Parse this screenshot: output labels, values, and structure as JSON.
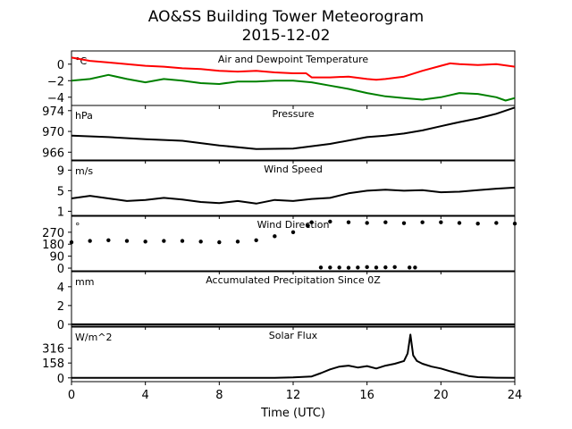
{
  "figure": {
    "title_line1": "AO&SS Building Tower Meteorogram",
    "title_line2": "2015-12-02",
    "xlabel": "Time (UTC)"
  },
  "chart_data": [
    {
      "type": "line",
      "title": "Air and Dewpoint Temperature",
      "unit_label": "°C",
      "yticks": [
        0,
        -2,
        -4
      ],
      "ylim": [
        -5.0,
        1.6
      ],
      "series": [
        {
          "color": "#ff0000",
          "x": [
            0,
            1,
            2,
            3,
            4,
            5,
            6,
            7,
            8,
            9,
            10,
            11,
            12,
            12.7,
            13,
            14,
            15,
            16,
            16.5,
            17,
            18,
            19,
            20,
            20.5,
            21,
            22,
            23,
            24
          ],
          "y": [
            0.8,
            0.4,
            0.2,
            0.0,
            -0.2,
            -0.3,
            -0.5,
            -0.6,
            -0.8,
            -0.9,
            -0.8,
            -1.0,
            -1.1,
            -1.1,
            -1.6,
            -1.6,
            -1.5,
            -1.8,
            -1.9,
            -1.8,
            -1.5,
            -0.8,
            -0.2,
            0.1,
            0.0,
            -0.1,
            0.0,
            -0.3
          ]
        },
        {
          "color": "#008000",
          "x": [
            0,
            1,
            2,
            3,
            4,
            5,
            6,
            7,
            8,
            9,
            10,
            11,
            12,
            13,
            14,
            15,
            16,
            17,
            18,
            19,
            20,
            21,
            22,
            23,
            23.5,
            24
          ],
          "y": [
            -2.0,
            -1.8,
            -1.3,
            -1.8,
            -2.2,
            -1.8,
            -2.0,
            -2.3,
            -2.4,
            -2.1,
            -2.1,
            -2.0,
            -2.0,
            -2.2,
            -2.6,
            -3.0,
            -3.5,
            -3.9,
            -4.1,
            -4.3,
            -4.0,
            -3.5,
            -3.6,
            -4.0,
            -4.4,
            -4.1
          ]
        }
      ]
    },
    {
      "type": "line",
      "title": "Pressure",
      "unit_label": "hPa",
      "yticks": [
        974,
        970,
        966
      ],
      "ylim": [
        964.5,
        975.0
      ],
      "series": [
        {
          "color": "#000000",
          "x": [
            0,
            2,
            4,
            6,
            8,
            10,
            12,
            14,
            16,
            17,
            18,
            19,
            20,
            21,
            22,
            23,
            24
          ],
          "y": [
            969.2,
            968.9,
            968.5,
            968.2,
            967.3,
            966.6,
            966.7,
            967.6,
            968.9,
            969.2,
            969.6,
            970.2,
            971.0,
            971.8,
            972.5,
            973.4,
            974.6
          ]
        }
      ]
    },
    {
      "type": "line",
      "title": "Wind Speed",
      "unit_label": "m/s",
      "yticks": [
        9,
        5,
        1
      ],
      "ylim": [
        0.2,
        10.8
      ],
      "series": [
        {
          "color": "#000000",
          "x": [
            0,
            1,
            2,
            3,
            4,
            5,
            6,
            7,
            8,
            9,
            10,
            11,
            12,
            13,
            14,
            15,
            16,
            17,
            18,
            19,
            20,
            21,
            22,
            23,
            24
          ],
          "y": [
            3.5,
            4.0,
            3.5,
            3.0,
            3.2,
            3.6,
            3.3,
            2.8,
            2.6,
            3.0,
            2.5,
            3.2,
            3.0,
            3.4,
            3.6,
            4.5,
            5.0,
            5.2,
            5.0,
            5.1,
            4.7,
            4.8,
            5.1,
            5.4,
            5.6
          ]
        }
      ]
    },
    {
      "type": "scatter",
      "title": "Wind Direction",
      "unit_label": "°",
      "yticks": [
        270,
        180,
        90,
        0
      ],
      "ylim": [
        -20,
        390
      ],
      "series": [
        {
          "color": "#000000",
          "x": [
            0,
            1,
            2,
            3,
            4,
            5,
            6,
            7,
            8,
            9,
            10,
            11,
            12,
            12.8,
            13,
            14,
            15,
            16,
            17,
            18,
            19,
            20,
            21,
            22,
            23,
            24
          ],
          "y": [
            195,
            205,
            210,
            205,
            200,
            205,
            205,
            200,
            195,
            200,
            210,
            240,
            270,
            320,
            345,
            350,
            345,
            340,
            345,
            338,
            345,
            345,
            340,
            335,
            340,
            335
          ]
        },
        {
          "color": "#000000",
          "x": [
            13.5,
            14,
            14.5,
            15,
            15.5,
            16,
            16.5,
            17,
            17.5,
            18.3,
            18.6
          ],
          "y": [
            5,
            5,
            5,
            3,
            5,
            8,
            5,
            6,
            8,
            5,
            5
          ]
        }
      ]
    },
    {
      "type": "line",
      "title": "Accumulated Precipitation Since 0Z",
      "unit_label": "mm",
      "yticks": [
        4,
        2,
        0
      ],
      "ylim": [
        -0.2,
        5.6
      ],
      "series": [
        {
          "color": "#000000",
          "x": [
            0,
            24
          ],
          "y": [
            0,
            0
          ]
        }
      ]
    },
    {
      "type": "line",
      "title": "Solar Flux",
      "unit_label": "W/m^2",
      "yticks": [
        316,
        158,
        0
      ],
      "ylim": [
        -40,
        540
      ],
      "series": [
        {
          "color": "#000000",
          "x": [
            0,
            11,
            12,
            13,
            13.5,
            14,
            14.5,
            15,
            15.5,
            16,
            16.5,
            17,
            17.5,
            18,
            18.2,
            18.35,
            18.5,
            18.7,
            19,
            19.5,
            20,
            20.5,
            21,
            21.5,
            22,
            23,
            24
          ],
          "y": [
            0,
            0,
            5,
            15,
            50,
            90,
            120,
            130,
            110,
            125,
            100,
            130,
            150,
            180,
            260,
            460,
            240,
            180,
            150,
            120,
            100,
            70,
            45,
            20,
            8,
            2,
            0
          ]
        }
      ]
    }
  ],
  "xaxis": {
    "ticks": [
      0,
      4,
      8,
      12,
      16,
      20,
      24
    ],
    "xlim": [
      0,
      24
    ]
  }
}
